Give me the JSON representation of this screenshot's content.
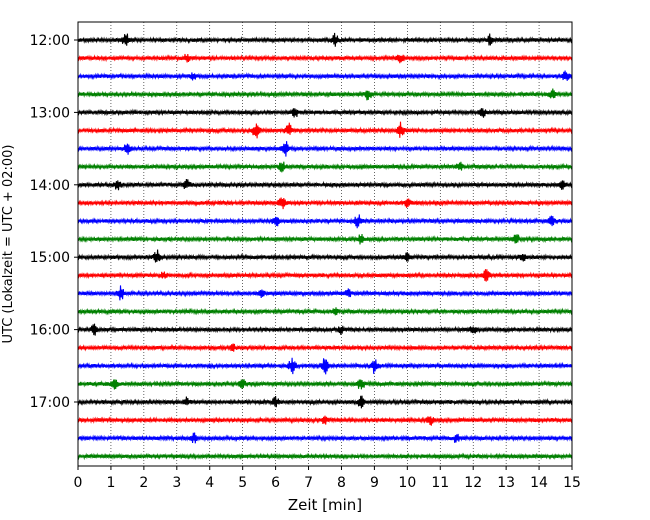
{
  "chart_data": {
    "type": "line",
    "subtype": "helicorder-seismogram",
    "xlabel": "Zeit  [min]",
    "ylabel": "UTC (Lokalzeit = UTC + 02:00)",
    "xlim": [
      0,
      15
    ],
    "x_ticks": [
      0,
      1,
      2,
      3,
      4,
      5,
      6,
      7,
      8,
      9,
      10,
      11,
      12,
      13,
      14,
      15
    ],
    "x_tick_labels": [
      "0",
      "1",
      "2",
      "3",
      "4",
      "5",
      "6",
      "7",
      "8",
      "9",
      "10",
      "11",
      "12",
      "13",
      "14",
      "15"
    ],
    "y_tick_labels": [
      "12:00",
      "13:00",
      "14:00",
      "15:00",
      "16:00",
      "17:00"
    ],
    "grid": "vertical dotted at each minute",
    "trace_colors": [
      "#000000",
      "#ff0000",
      "#0000ff",
      "#008000"
    ],
    "traces": [
      {
        "start": "12:00",
        "color": "#000000",
        "bursts": [
          [
            1.45,
            0.9
          ],
          [
            7.8,
            0.8
          ],
          [
            12.5,
            0.6
          ]
        ]
      },
      {
        "start": "12:15",
        "color": "#ff0000",
        "bursts": [
          [
            3.3,
            0.6
          ],
          [
            9.8,
            0.6
          ]
        ]
      },
      {
        "start": "12:30",
        "color": "#0000ff",
        "bursts": [
          [
            3.5,
            0.5
          ],
          [
            14.8,
            0.6
          ]
        ]
      },
      {
        "start": "12:45",
        "color": "#008000",
        "bursts": [
          [
            8.8,
            0.8
          ],
          [
            14.4,
            0.7
          ]
        ]
      },
      {
        "start": "13:00",
        "color": "#000000",
        "bursts": [
          [
            6.6,
            0.6
          ],
          [
            12.3,
            0.5
          ]
        ]
      },
      {
        "start": "13:15",
        "color": "#ff0000",
        "bursts": [
          [
            5.4,
            1.0
          ],
          [
            6.4,
            0.9
          ],
          [
            9.8,
            1.0
          ]
        ]
      },
      {
        "start": "13:30",
        "color": "#0000ff",
        "bursts": [
          [
            1.5,
            0.8
          ],
          [
            6.3,
            0.9
          ]
        ]
      },
      {
        "start": "13:45",
        "color": "#008000",
        "bursts": [
          [
            6.2,
            0.6
          ],
          [
            11.6,
            0.5
          ]
        ]
      },
      {
        "start": "14:00",
        "color": "#000000",
        "bursts": [
          [
            1.2,
            0.7
          ],
          [
            3.3,
            0.6
          ],
          [
            14.7,
            0.6
          ]
        ]
      },
      {
        "start": "14:15",
        "color": "#ff0000",
        "bursts": [
          [
            6.2,
            0.7
          ],
          [
            10.0,
            0.6
          ]
        ]
      },
      {
        "start": "14:30",
        "color": "#0000ff",
        "bursts": [
          [
            6.0,
            0.8
          ],
          [
            8.5,
            0.8
          ],
          [
            14.4,
            0.7
          ]
        ]
      },
      {
        "start": "14:45",
        "color": "#008000",
        "bursts": [
          [
            8.6,
            0.6
          ],
          [
            13.3,
            0.8
          ]
        ]
      },
      {
        "start": "15:00",
        "color": "#000000",
        "bursts": [
          [
            2.4,
            0.9
          ],
          [
            10.0,
            0.6
          ],
          [
            13.5,
            0.5
          ]
        ]
      },
      {
        "start": "15:15",
        "color": "#ff0000",
        "bursts": [
          [
            2.6,
            0.4
          ],
          [
            12.4,
            0.8
          ]
        ]
      },
      {
        "start": "15:30",
        "color": "#0000ff",
        "bursts": [
          [
            1.3,
            0.9
          ],
          [
            5.6,
            0.5
          ],
          [
            8.2,
            0.5
          ]
        ]
      },
      {
        "start": "15:45",
        "color": "#008000",
        "bursts": [
          [
            7.8,
            0.4
          ]
        ]
      },
      {
        "start": "16:00",
        "color": "#000000",
        "bursts": [
          [
            0.5,
            0.7
          ],
          [
            8.0,
            0.5
          ],
          [
            12.0,
            0.5
          ]
        ]
      },
      {
        "start": "16:15",
        "color": "#ff0000",
        "bursts": [
          [
            4.7,
            0.4
          ]
        ]
      },
      {
        "start": "16:30",
        "color": "#0000ff",
        "bursts": [
          [
            6.5,
            1.0
          ],
          [
            7.5,
            1.4
          ],
          [
            9.0,
            0.9
          ]
        ]
      },
      {
        "start": "16:45",
        "color": "#008000",
        "bursts": [
          [
            1.1,
            0.7
          ],
          [
            5.0,
            0.5
          ],
          [
            8.6,
            0.9
          ]
        ]
      },
      {
        "start": "17:00",
        "color": "#000000",
        "bursts": [
          [
            3.3,
            0.7
          ],
          [
            6.0,
            0.6
          ],
          [
            8.6,
            0.7
          ]
        ]
      },
      {
        "start": "17:15",
        "color": "#ff0000",
        "bursts": [
          [
            7.5,
            0.5
          ],
          [
            10.7,
            0.6
          ]
        ]
      },
      {
        "start": "17:30",
        "color": "#0000ff",
        "bursts": [
          [
            3.5,
            0.7
          ],
          [
            11.5,
            0.6
          ]
        ]
      },
      {
        "start": "17:45",
        "color": "#008000",
        "bursts": []
      }
    ]
  }
}
